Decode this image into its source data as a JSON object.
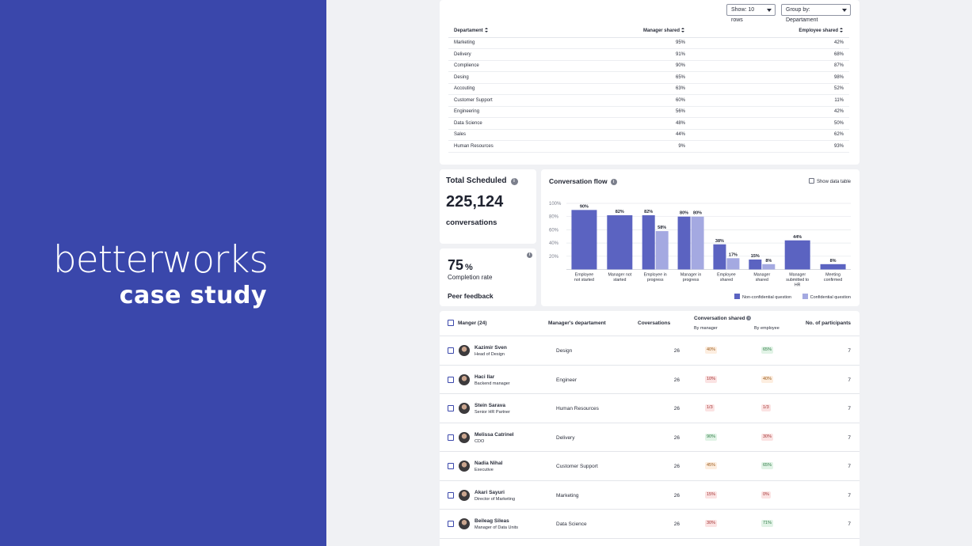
{
  "brand": {
    "logo": "betterworks",
    "subtitle": "case study"
  },
  "dept_table": {
    "show_rows": "Show: 10 rows",
    "group_by": "Group by: Departament",
    "columns": [
      "Departament",
      "Manager shared",
      "Employee shared"
    ],
    "rows": [
      [
        "Marketing",
        "95%",
        "42%"
      ],
      [
        "Delivery",
        "91%",
        "68%"
      ],
      [
        "Complience",
        "90%",
        "87%"
      ],
      [
        "Desing",
        "65%",
        "98%"
      ],
      [
        "Accouting",
        "63%",
        "52%"
      ],
      [
        "Customer Support",
        "60%",
        "11%"
      ],
      [
        "Engineering",
        "56%",
        "42%"
      ],
      [
        "Data Science",
        "48%",
        "50%"
      ],
      [
        "Sales",
        "44%",
        "62%"
      ],
      [
        "Human Resources",
        "9%",
        "93%"
      ]
    ]
  },
  "total": {
    "title": "Total Scheduled",
    "value": "225,124",
    "unit": "conversations",
    "info": "i"
  },
  "completion": {
    "value": "75",
    "unit": "%",
    "label": "Completion rate",
    "peer": "Peer feedback",
    "info": "i"
  },
  "chart": {
    "title": "Conversation flow",
    "info": "i",
    "show_table": "Show data table",
    "colors": {
      "primary": "#5b63c1",
      "secondary": "#a4a9e1"
    }
  },
  "chart_data": {
    "type": "bar",
    "title": "Conversation flow",
    "categories": [
      [
        "Employee",
        "not started"
      ],
      [
        "Manager not",
        "started"
      ],
      [
        "Employee in",
        "progress"
      ],
      [
        "Manager in",
        "progress"
      ],
      [
        "Employee",
        "shared"
      ],
      [
        "Manager",
        "shared"
      ],
      [
        "Manager",
        "submitted to",
        "HR"
      ],
      [
        "Meeting",
        "confirmed"
      ]
    ],
    "series": [
      {
        "name": "Non-confidential question",
        "values": [
          90,
          82,
          82,
          80,
          38,
          15,
          44,
          8
        ]
      },
      {
        "name": "Confidential question",
        "values": [
          null,
          null,
          58,
          80,
          17,
          8,
          null,
          null
        ]
      }
    ],
    "yticks": [
      "20%",
      "40%",
      "60%",
      "80%",
      "100%"
    ],
    "ylim": [
      0,
      100
    ],
    "grid": true,
    "legend": "bottom-right"
  },
  "managers": {
    "header": {
      "manager": "Manger (24)",
      "department": "Manager's departament",
      "conversations": "Coversations",
      "shared": "Conversation shared",
      "shared_info": "i",
      "by_manager": "By manager",
      "by_employee": "By employee",
      "participants": "No. of participants"
    },
    "rows": [
      {
        "name": "Kazimir Sven",
        "role": "Head of Design",
        "dept": "Design",
        "conv": "26",
        "man": "40%",
        "man_tone": "orange",
        "emp": "65%",
        "emp_tone": "green",
        "part": "7"
      },
      {
        "name": "Haci Ilar",
        "role": "Backend manager",
        "dept": "Engineer",
        "conv": "26",
        "man": "10%",
        "man_tone": "red",
        "emp": "40%",
        "emp_tone": "orange",
        "part": "7"
      },
      {
        "name": "Stein Sarava",
        "role": "Senior HR Partner",
        "dept": "Human Resources",
        "conv": "26",
        "man": "1/3",
        "man_tone": "red",
        "emp": "1/3",
        "emp_tone": "red",
        "part": "7"
      },
      {
        "name": "Melissa Catrinel",
        "role": "CDO",
        "dept": "Delivery",
        "conv": "26",
        "man": "90%",
        "man_tone": "green",
        "emp": "30%",
        "emp_tone": "red",
        "part": "7"
      },
      {
        "name": "Nadia Nihal",
        "role": "Executive",
        "dept": "Customer Support",
        "conv": "26",
        "man": "45%",
        "man_tone": "orange",
        "emp": "65%",
        "emp_tone": "green",
        "part": "7"
      },
      {
        "name": "Akari Sayuri",
        "role": "Director of Marketing",
        "dept": "Marketing",
        "conv": "26",
        "man": "15%",
        "man_tone": "red",
        "emp": "0%",
        "emp_tone": "red",
        "part": "7"
      },
      {
        "name": "Beileag Sileas",
        "role": "Manager of Data Units",
        "dept": "Data Science",
        "conv": "26",
        "man": "30%",
        "man_tone": "red",
        "emp": "71%",
        "emp_tone": "green",
        "part": "7"
      }
    ]
  }
}
